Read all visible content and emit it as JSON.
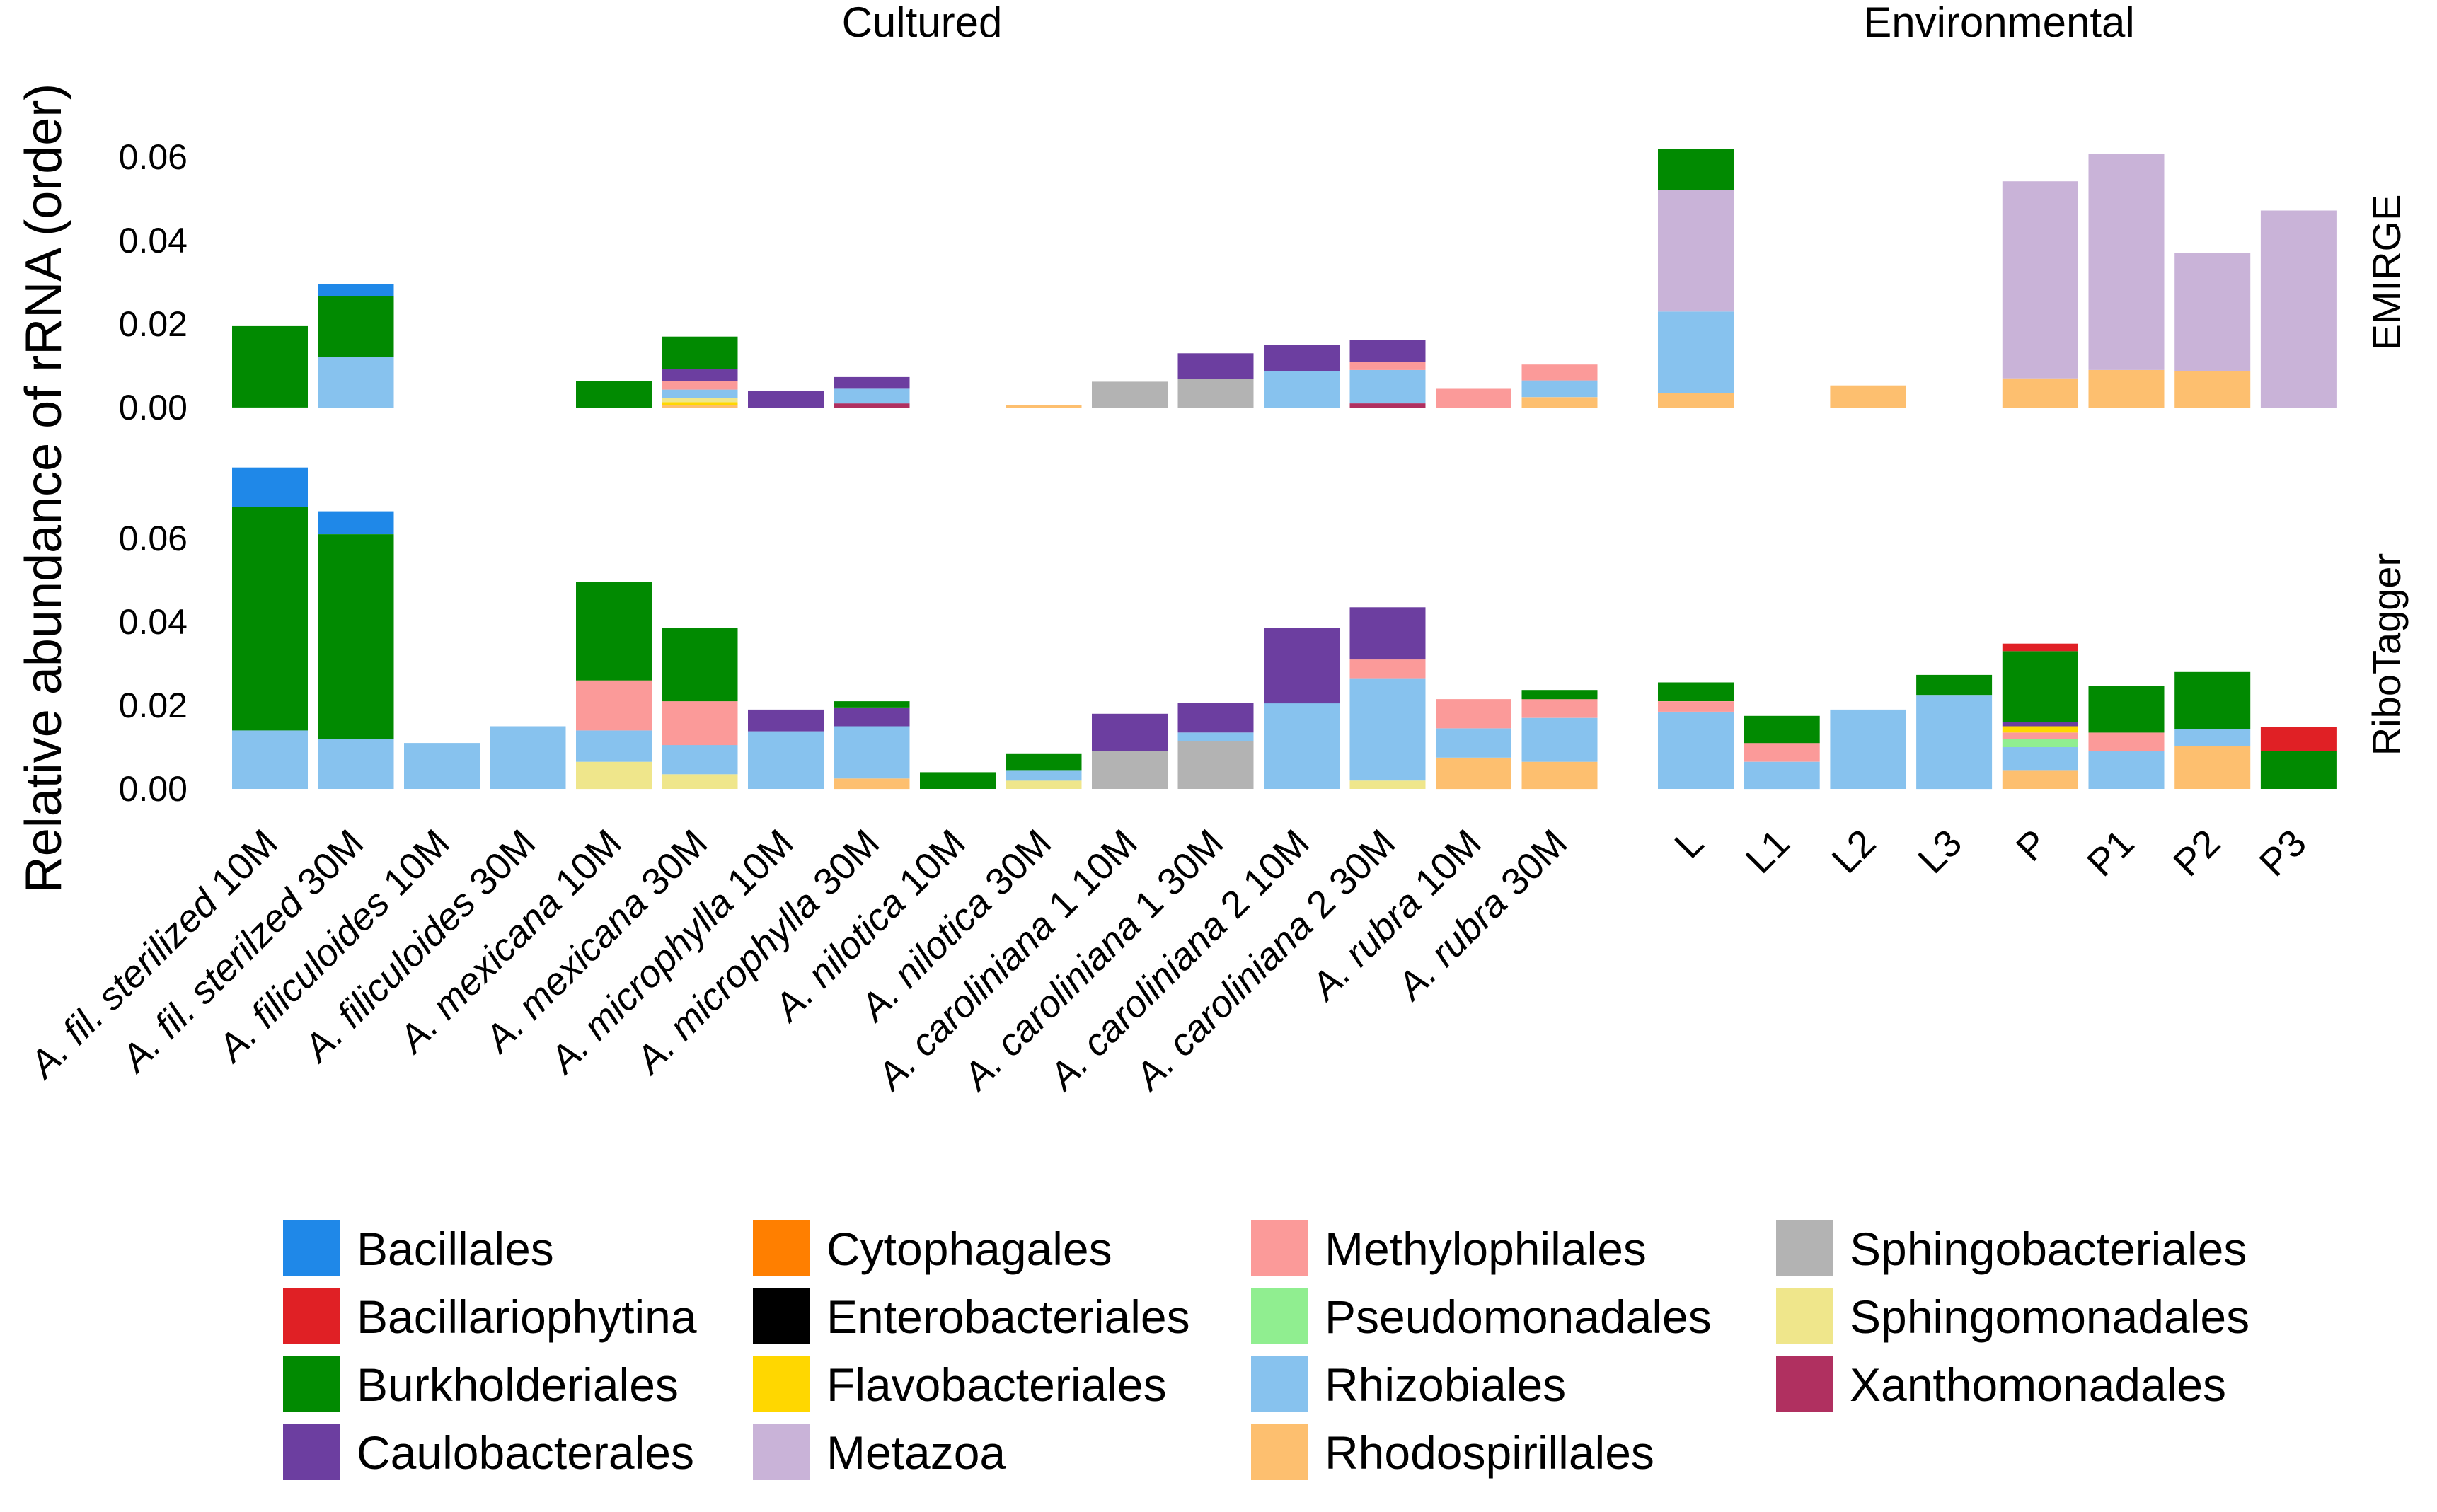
{
  "chart_data": {
    "type": "bar",
    "stacked": true,
    "ylabel": "Relative abundance of rRNA (order)",
    "ylim": [
      0,
      0.075
    ],
    "yticks": [
      "0.00",
      "0.02",
      "0.04",
      "0.06"
    ],
    "column_facets": [
      "Cultured",
      "Environmental"
    ],
    "row_facets": [
      "EMIRGE",
      "RiboTagger"
    ],
    "legend_position": "bottom",
    "orders": [
      {
        "name": "Bacillales",
        "color": "#1f88e8"
      },
      {
        "name": "Bacillariophytina",
        "color": "#e02025"
      },
      {
        "name": "Burkholderiales",
        "color": "#018a01"
      },
      {
        "name": "Caulobacterales",
        "color": "#6c3ea0"
      },
      {
        "name": "Cytophagales",
        "color": "#ff7f00"
      },
      {
        "name": "Enterobacteriales",
        "color": "#000000"
      },
      {
        "name": "Flavobacteriales",
        "color": "#ffd700"
      },
      {
        "name": "Metazoa",
        "color": "#c9b3d8"
      },
      {
        "name": "Methylophilales",
        "color": "#fb9a99"
      },
      {
        "name": "Pseudomonadales",
        "color": "#90ee90"
      },
      {
        "name": "Rhizobiales",
        "color": "#87c2ee"
      },
      {
        "name": "Rhodospirillales",
        "color": "#fdbf6f"
      },
      {
        "name": "Sphingobacteriales",
        "color": "#b3b3b3"
      },
      {
        "name": "Sphingomonadales",
        "color": "#efe68b"
      },
      {
        "name": "Xanthomonadales",
        "color": "#b03060"
      }
    ],
    "cultured_categories": [
      {
        "prefix": "A. ",
        "species": "fil. sterilized",
        "suffix": " 10M"
      },
      {
        "prefix": "A. ",
        "species": "fil. sterilzed",
        "suffix": " 30M"
      },
      {
        "prefix": "A. ",
        "species": "filiculoides",
        "suffix": " 10M"
      },
      {
        "prefix": "A. ",
        "species": "filiculoides",
        "suffix": " 30M"
      },
      {
        "prefix": "A. ",
        "species": "mexicana",
        "suffix": " 10M"
      },
      {
        "prefix": "A. ",
        "species": "mexicana",
        "suffix": " 30M"
      },
      {
        "prefix": "A. ",
        "species": "microphylla",
        "suffix": " 10M"
      },
      {
        "prefix": "A. ",
        "species": "microphylla",
        "suffix": " 30M"
      },
      {
        "prefix": "A. ",
        "species": "nilotica",
        "suffix": " 10M"
      },
      {
        "prefix": "A. ",
        "species": "nilotica",
        "suffix": " 30M"
      },
      {
        "prefix": "A. ",
        "species": "caroliniana",
        "suffix": " 1 10M"
      },
      {
        "prefix": "A. ",
        "species": "caroliniana",
        "suffix": " 1 30M"
      },
      {
        "prefix": "A. ",
        "species": "caroliniana",
        "suffix": " 2 10M"
      },
      {
        "prefix": "A. ",
        "species": "caroliniana",
        "suffix": " 2 30M"
      },
      {
        "prefix": "A. ",
        "species": "rubra",
        "suffix": " 10M"
      },
      {
        "prefix": "A. ",
        "species": "rubra",
        "suffix": " 30M"
      }
    ],
    "environmental_categories": [
      "L",
      "L1",
      "L2",
      "L3",
      "P",
      "P1",
      "P2",
      "P3"
    ],
    "panels": {
      "EMIRGE": {
        "Cultured": [
          [
            [
              "Burkholderiales",
              0.0195
            ]
          ],
          [
            [
              "Rhizobiales",
              0.0122
            ],
            [
              "Burkholderiales",
              0.0145
            ],
            [
              "Bacillales",
              0.0028
            ]
          ],
          [],
          [],
          [
            [
              "Burkholderiales",
              0.0063
            ]
          ],
          [
            [
              "Rhodospirillales",
              0.0005
            ],
            [
              "Flavobacteriales",
              0.0008
            ],
            [
              "Sphingomonadales",
              0.001
            ],
            [
              "Rhizobiales",
              0.002
            ],
            [
              "Methylophilales",
              0.002
            ],
            [
              "Caulobacterales",
              0.003
            ],
            [
              "Burkholderiales",
              0.0077
            ]
          ],
          [
            [
              "Caulobacterales",
              0.004
            ]
          ],
          [
            [
              "Xanthomonadales",
              0.001
            ],
            [
              "Rhizobiales",
              0.0035
            ],
            [
              "Caulobacterales",
              0.0028
            ]
          ],
          [],
          [
            [
              "Rhodospirillales",
              0.0005
            ]
          ],
          [
            [
              "Sphingobacteriales",
              0.0062
            ]
          ],
          [
            [
              "Sphingobacteriales",
              0.0068
            ],
            [
              "Caulobacterales",
              0.0062
            ]
          ],
          [
            [
              "Rhizobiales",
              0.0087
            ],
            [
              "Caulobacterales",
              0.0063
            ]
          ],
          [
            [
              "Xanthomonadales",
              0.001
            ],
            [
              "Rhizobiales",
              0.008
            ],
            [
              "Methylophilales",
              0.002
            ],
            [
              "Caulobacterales",
              0.0052
            ]
          ],
          [
            [
              "Methylophilales",
              0.0045
            ]
          ],
          [
            [
              "Rhodospirillales",
              0.0025
            ],
            [
              "Rhizobiales",
              0.004
            ],
            [
              "Methylophilales",
              0.0038
            ]
          ]
        ],
        "Environmental": [
          [
            [
              "Rhodospirillales",
              0.0035
            ],
            [
              "Rhizobiales",
              0.0195
            ],
            [
              "Metazoa",
              0.0292
            ],
            [
              "Burkholderiales",
              0.0098
            ]
          ],
          [],
          [
            [
              "Rhodospirillales",
              0.0053
            ]
          ],
          [],
          [
            [
              "Rhodospirillales",
              0.007
            ],
            [
              "Metazoa",
              0.0472
            ]
          ],
          [
            [
              "Rhodospirillales",
              0.009
            ],
            [
              "Metazoa",
              0.0517
            ]
          ],
          [
            [
              "Rhodospirillales",
              0.0088
            ],
            [
              "Metazoa",
              0.0282
            ]
          ],
          [
            [
              "Metazoa",
              0.0472
            ]
          ]
        ]
      },
      "RiboTagger": {
        "Cultured": [
          [
            [
              "Rhizobiales",
              0.014
            ],
            [
              "Burkholderiales",
              0.0535
            ],
            [
              "Bacillales",
              0.0095
            ]
          ],
          [
            [
              "Rhizobiales",
              0.012
            ],
            [
              "Burkholderiales",
              0.049
            ],
            [
              "Bacillales",
              0.0055
            ]
          ],
          [
            [
              "Rhizobiales",
              0.011
            ]
          ],
          [
            [
              "Rhizobiales",
              0.015
            ]
          ],
          [
            [
              "Sphingomonadales",
              0.0065
            ],
            [
              "Rhizobiales",
              0.0075
            ],
            [
              "Methylophilales",
              0.012
            ],
            [
              "Burkholderiales",
              0.0235
            ]
          ],
          [
            [
              "Sphingomonadales",
              0.0035
            ],
            [
              "Rhizobiales",
              0.007
            ],
            [
              "Methylophilales",
              0.0105
            ],
            [
              "Burkholderiales",
              0.0175
            ]
          ],
          [
            [
              "Rhizobiales",
              0.0138
            ],
            [
              "Caulobacterales",
              0.0052
            ]
          ],
          [
            [
              "Rhodospirillales",
              0.0025
            ],
            [
              "Rhizobiales",
              0.0125
            ],
            [
              "Caulobacterales",
              0.0045
            ],
            [
              "Burkholderiales",
              0.0015
            ]
          ],
          [
            [
              "Burkholderiales",
              0.004
            ]
          ],
          [
            [
              "Sphingomonadales",
              0.002
            ],
            [
              "Rhizobiales",
              0.0025
            ],
            [
              "Burkholderiales",
              0.004
            ]
          ],
          [
            [
              "Sphingobacteriales",
              0.009
            ],
            [
              "Caulobacterales",
              0.009
            ]
          ],
          [
            [
              "Sphingobacteriales",
              0.0115
            ],
            [
              "Rhizobiales",
              0.002
            ],
            [
              "Caulobacterales",
              0.007
            ]
          ],
          [
            [
              "Rhizobiales",
              0.0205
            ],
            [
              "Caulobacterales",
              0.018
            ]
          ],
          [
            [
              "Sphingomonadales",
              0.002
            ],
            [
              "Rhizobiales",
              0.0245
            ],
            [
              "Methylophilales",
              0.0045
            ],
            [
              "Caulobacterales",
              0.0125
            ]
          ],
          [
            [
              "Rhodospirillales",
              0.0075
            ],
            [
              "Rhizobiales",
              0.007
            ],
            [
              "Methylophilales",
              0.007
            ]
          ],
          [
            [
              "Rhodospirillales",
              0.0065
            ],
            [
              "Rhizobiales",
              0.0105
            ],
            [
              "Methylophilales",
              0.0045
            ],
            [
              "Burkholderiales",
              0.0022
            ]
          ]
        ],
        "Environmental": [
          [
            [
              "Rhizobiales",
              0.0185
            ],
            [
              "Methylophilales",
              0.0025
            ],
            [
              "Burkholderiales",
              0.0045
            ]
          ],
          [
            [
              "Rhizobiales",
              0.0065
            ],
            [
              "Methylophilales",
              0.0045
            ],
            [
              "Burkholderiales",
              0.0065
            ]
          ],
          [
            [
              "Rhizobiales",
              0.019
            ]
          ],
          [
            [
              "Rhizobiales",
              0.0225
            ],
            [
              "Burkholderiales",
              0.0048
            ]
          ],
          [
            [
              "Rhodospirillales",
              0.0045
            ],
            [
              "Rhizobiales",
              0.0055
            ],
            [
              "Pseudomonadales",
              0.002
            ],
            [
              "Methylophilales",
              0.0015
            ],
            [
              "Flavobacteriales",
              0.0015
            ],
            [
              "Caulobacterales",
              0.001
            ],
            [
              "Burkholderiales",
              0.017
            ],
            [
              "Bacillariophytina",
              0.0018
            ]
          ],
          [
            [
              "Rhizobiales",
              0.009
            ],
            [
              "Methylophilales",
              0.0045
            ],
            [
              "Burkholderiales",
              0.0112
            ]
          ],
          [
            [
              "Rhodospirillales",
              0.0103
            ],
            [
              "Rhizobiales",
              0.004
            ],
            [
              "Burkholderiales",
              0.0137
            ]
          ],
          [
            [
              "Burkholderiales",
              0.009
            ],
            [
              "Bacillariophytina",
              0.0058
            ]
          ]
        ]
      }
    }
  }
}
